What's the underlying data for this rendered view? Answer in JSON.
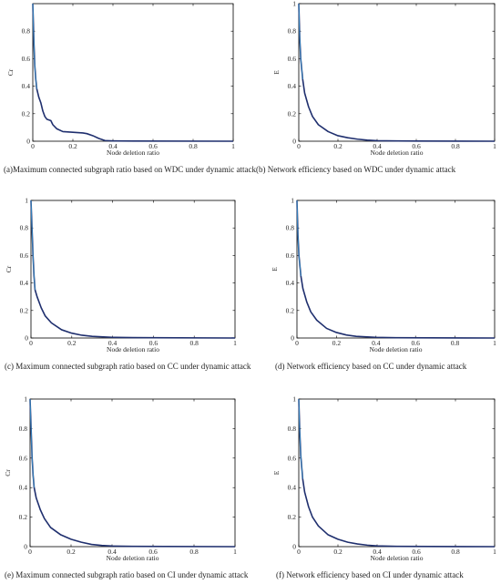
{
  "colors": {
    "curve": "#1f2f6e",
    "curve_highlight": "#3a9fd8",
    "axis": "#000000"
  },
  "chart_data": [
    {
      "type": "line",
      "caption": "(a)Maximum connected subgraph ratio based on WDC under dynamic attack",
      "xlabel": "Node deletion ratio",
      "ylabel": "Cr",
      "xlim": [
        0,
        1
      ],
      "ylim": [
        0,
        1
      ],
      "xticks": [
        "0",
        "0.2",
        "0.4",
        "0.6",
        "0.8",
        "1"
      ],
      "yticks": [
        "0",
        "0.2",
        "0.4",
        "0.6",
        "0.8"
      ],
      "series": [
        {
          "values": [
            [
              0,
              1.0
            ],
            [
              0.003,
              0.85
            ],
            [
              0.006,
              0.7
            ],
            [
              0.01,
              0.55
            ],
            [
              0.015,
              0.45
            ],
            [
              0.02,
              0.38
            ],
            [
              0.03,
              0.32
            ],
            [
              0.04,
              0.28
            ],
            [
              0.05,
              0.22
            ],
            [
              0.06,
              0.18
            ],
            [
              0.07,
              0.16
            ],
            [
              0.09,
              0.15
            ],
            [
              0.1,
              0.12
            ],
            [
              0.12,
              0.09
            ],
            [
              0.15,
              0.07
            ],
            [
              0.2,
              0.065
            ],
            [
              0.25,
              0.06
            ],
            [
              0.27,
              0.055
            ],
            [
              0.3,
              0.04
            ],
            [
              0.33,
              0.02
            ],
            [
              0.36,
              0.005
            ],
            [
              0.4,
              0.002
            ],
            [
              0.5,
              0.001
            ],
            [
              1.0,
              0.0
            ]
          ]
        }
      ]
    },
    {
      "type": "line",
      "caption": "(b) Network efficiency based on WDC under dynamic attack",
      "xlabel": "Node deletion ratio",
      "ylabel": "E",
      "xlim": [
        0,
        1
      ],
      "ylim": [
        0,
        1
      ],
      "xticks": [
        "0",
        "0.2",
        "0.4",
        "0.6",
        "0.8",
        "1"
      ],
      "yticks": [
        "0",
        "0.2",
        "0.4",
        "0.6",
        "0.8",
        "1"
      ],
      "series": [
        {
          "values": [
            [
              0,
              1.0
            ],
            [
              0.005,
              0.75
            ],
            [
              0.01,
              0.6
            ],
            [
              0.02,
              0.45
            ],
            [
              0.03,
              0.35
            ],
            [
              0.05,
              0.25
            ],
            [
              0.07,
              0.18
            ],
            [
              0.1,
              0.12
            ],
            [
              0.15,
              0.07
            ],
            [
              0.2,
              0.04
            ],
            [
              0.25,
              0.025
            ],
            [
              0.3,
              0.015
            ],
            [
              0.35,
              0.008
            ],
            [
              0.4,
              0.004
            ],
            [
              0.5,
              0.002
            ],
            [
              0.6,
              0.001
            ],
            [
              1.0,
              0.0
            ]
          ]
        }
      ]
    },
    {
      "type": "line",
      "caption": "(c) Maximum connected subgraph ratio based on CC under dynamic attack",
      "xlabel": "Node deletion ratio",
      "ylabel": "Cr",
      "xlim": [
        0,
        1
      ],
      "ylim": [
        0,
        1
      ],
      "xticks": [
        "0",
        "0.2",
        "0.4",
        "0.6",
        "0.8",
        "1"
      ],
      "yticks": [
        "0",
        "0.2",
        "0.4",
        "0.6",
        "0.8",
        "1"
      ],
      "series": [
        {
          "values": [
            [
              0,
              1.0
            ],
            [
              0.005,
              0.8
            ],
            [
              0.01,
              0.6
            ],
            [
              0.015,
              0.45
            ],
            [
              0.02,
              0.35
            ],
            [
              0.03,
              0.3
            ],
            [
              0.05,
              0.22
            ],
            [
              0.07,
              0.16
            ],
            [
              0.1,
              0.11
            ],
            [
              0.15,
              0.06
            ],
            [
              0.2,
              0.035
            ],
            [
              0.25,
              0.02
            ],
            [
              0.3,
              0.012
            ],
            [
              0.4,
              0.005
            ],
            [
              0.5,
              0.003
            ],
            [
              0.6,
              0.002
            ],
            [
              1.0,
              0.0
            ]
          ]
        }
      ]
    },
    {
      "type": "line",
      "caption": "(d) Network efficiency based on CC under dynamic attack",
      "xlabel": "Node deletion ratio",
      "ylabel": "E",
      "xlim": [
        0,
        1
      ],
      "ylim": [
        0,
        1
      ],
      "xticks": [
        "0",
        "0.2",
        "0.4",
        "0.6",
        "0.8",
        "1"
      ],
      "yticks": [
        "0",
        "0.2",
        "0.4",
        "0.6",
        "0.8",
        "1"
      ],
      "series": [
        {
          "values": [
            [
              0,
              1.0
            ],
            [
              0.005,
              0.75
            ],
            [
              0.01,
              0.6
            ],
            [
              0.02,
              0.45
            ],
            [
              0.03,
              0.36
            ],
            [
              0.05,
              0.26
            ],
            [
              0.07,
              0.19
            ],
            [
              0.1,
              0.13
            ],
            [
              0.15,
              0.07
            ],
            [
              0.2,
              0.04
            ],
            [
              0.25,
              0.022
            ],
            [
              0.3,
              0.012
            ],
            [
              0.4,
              0.005
            ],
            [
              0.5,
              0.002
            ],
            [
              1.0,
              0.0
            ]
          ]
        }
      ]
    },
    {
      "type": "line",
      "caption": "(e) Maximum connected subgraph ratio based on CI under dynamic attack",
      "xlabel": "Node deletion ratio",
      "ylabel": "Cr",
      "xlim": [
        0,
        1
      ],
      "ylim": [
        0,
        1
      ],
      "xticks": [
        "0",
        "0.2",
        "0.4",
        "0.6",
        "0.8",
        "1"
      ],
      "yticks": [
        "0",
        "0.2",
        "0.4",
        "0.6",
        "0.8",
        "1"
      ],
      "series": [
        {
          "values": [
            [
              0,
              1.0
            ],
            [
              0.005,
              0.8
            ],
            [
              0.01,
              0.6
            ],
            [
              0.015,
              0.48
            ],
            [
              0.02,
              0.4
            ],
            [
              0.03,
              0.33
            ],
            [
              0.05,
              0.25
            ],
            [
              0.07,
              0.19
            ],
            [
              0.1,
              0.13
            ],
            [
              0.15,
              0.08
            ],
            [
              0.2,
              0.05
            ],
            [
              0.25,
              0.03
            ],
            [
              0.3,
              0.015
            ],
            [
              0.35,
              0.008
            ],
            [
              0.4,
              0.004
            ],
            [
              0.5,
              0.002
            ],
            [
              1.0,
              0.0
            ]
          ]
        }
      ]
    },
    {
      "type": "line",
      "caption": "(f) Network efficiency based on CI under dynamic attack",
      "xlabel": "Node deletion ratio",
      "ylabel": "E",
      "xlim": [
        0,
        1
      ],
      "ylim": [
        0,
        1
      ],
      "xticks": [
        "0",
        "0.2",
        "0.4",
        "0.6",
        "0.8",
        "1"
      ],
      "yticks": [
        "0",
        "0.2",
        "0.4",
        "0.6",
        "0.8",
        "1"
      ],
      "series": [
        {
          "values": [
            [
              0,
              1.0
            ],
            [
              0.005,
              0.78
            ],
            [
              0.01,
              0.62
            ],
            [
              0.02,
              0.46
            ],
            [
              0.03,
              0.37
            ],
            [
              0.05,
              0.27
            ],
            [
              0.07,
              0.2
            ],
            [
              0.1,
              0.14
            ],
            [
              0.15,
              0.08
            ],
            [
              0.2,
              0.05
            ],
            [
              0.25,
              0.03
            ],
            [
              0.3,
              0.018
            ],
            [
              0.35,
              0.01
            ],
            [
              0.4,
              0.005
            ],
            [
              0.5,
              0.002
            ],
            [
              1.0,
              0.0
            ]
          ]
        }
      ]
    }
  ]
}
